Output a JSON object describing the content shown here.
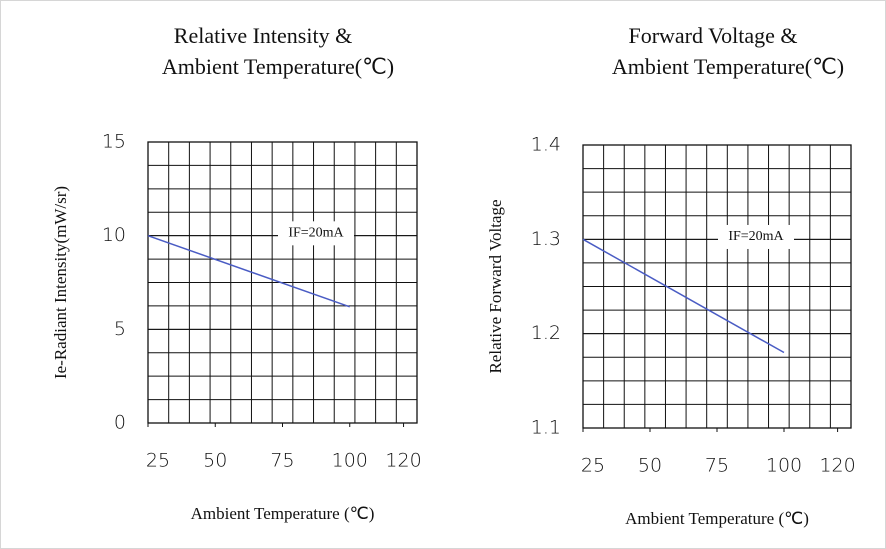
{
  "chart_data": [
    {
      "type": "line",
      "title": [
        "Relative Intensity &",
        "Ambient Temperature(℃)"
      ],
      "x_label": "Ambient Temperature (℃)",
      "y_label": "Ie-Radiant Intensity(mW/sr)",
      "annotation": "IF=20mA",
      "x": [
        25,
        100
      ],
      "series": [
        {
          "name": "IF=20mA",
          "color": "#4a5cc4",
          "values": [
            10,
            6.2
          ]
        }
      ],
      "xlim": [
        25,
        125
      ],
      "xticks": [
        25,
        50,
        75,
        100,
        120
      ],
      "ylim": [
        0,
        15
      ],
      "yticks": [
        0,
        5,
        10,
        15
      ],
      "grid": true
    },
    {
      "type": "line",
      "title": [
        "Forward Voltage &",
        "Ambient Temperature(℃)"
      ],
      "x_label": "Ambient Temperature (℃)",
      "y_label": "Relative Forward Voltage",
      "annotation": "IF=20mA",
      "x": [
        25,
        100
      ],
      "series": [
        {
          "name": "IF=20mA",
          "color": "#4a5cc4",
          "values": [
            1.3,
            1.18
          ]
        }
      ],
      "xlim": [
        25,
        125
      ],
      "xticks": [
        25,
        50,
        75,
        100,
        120
      ],
      "ylim": [
        1.1,
        1.4
      ],
      "yticks": [
        1.1,
        1.2,
        1.3,
        1.4
      ],
      "grid": true
    }
  ]
}
